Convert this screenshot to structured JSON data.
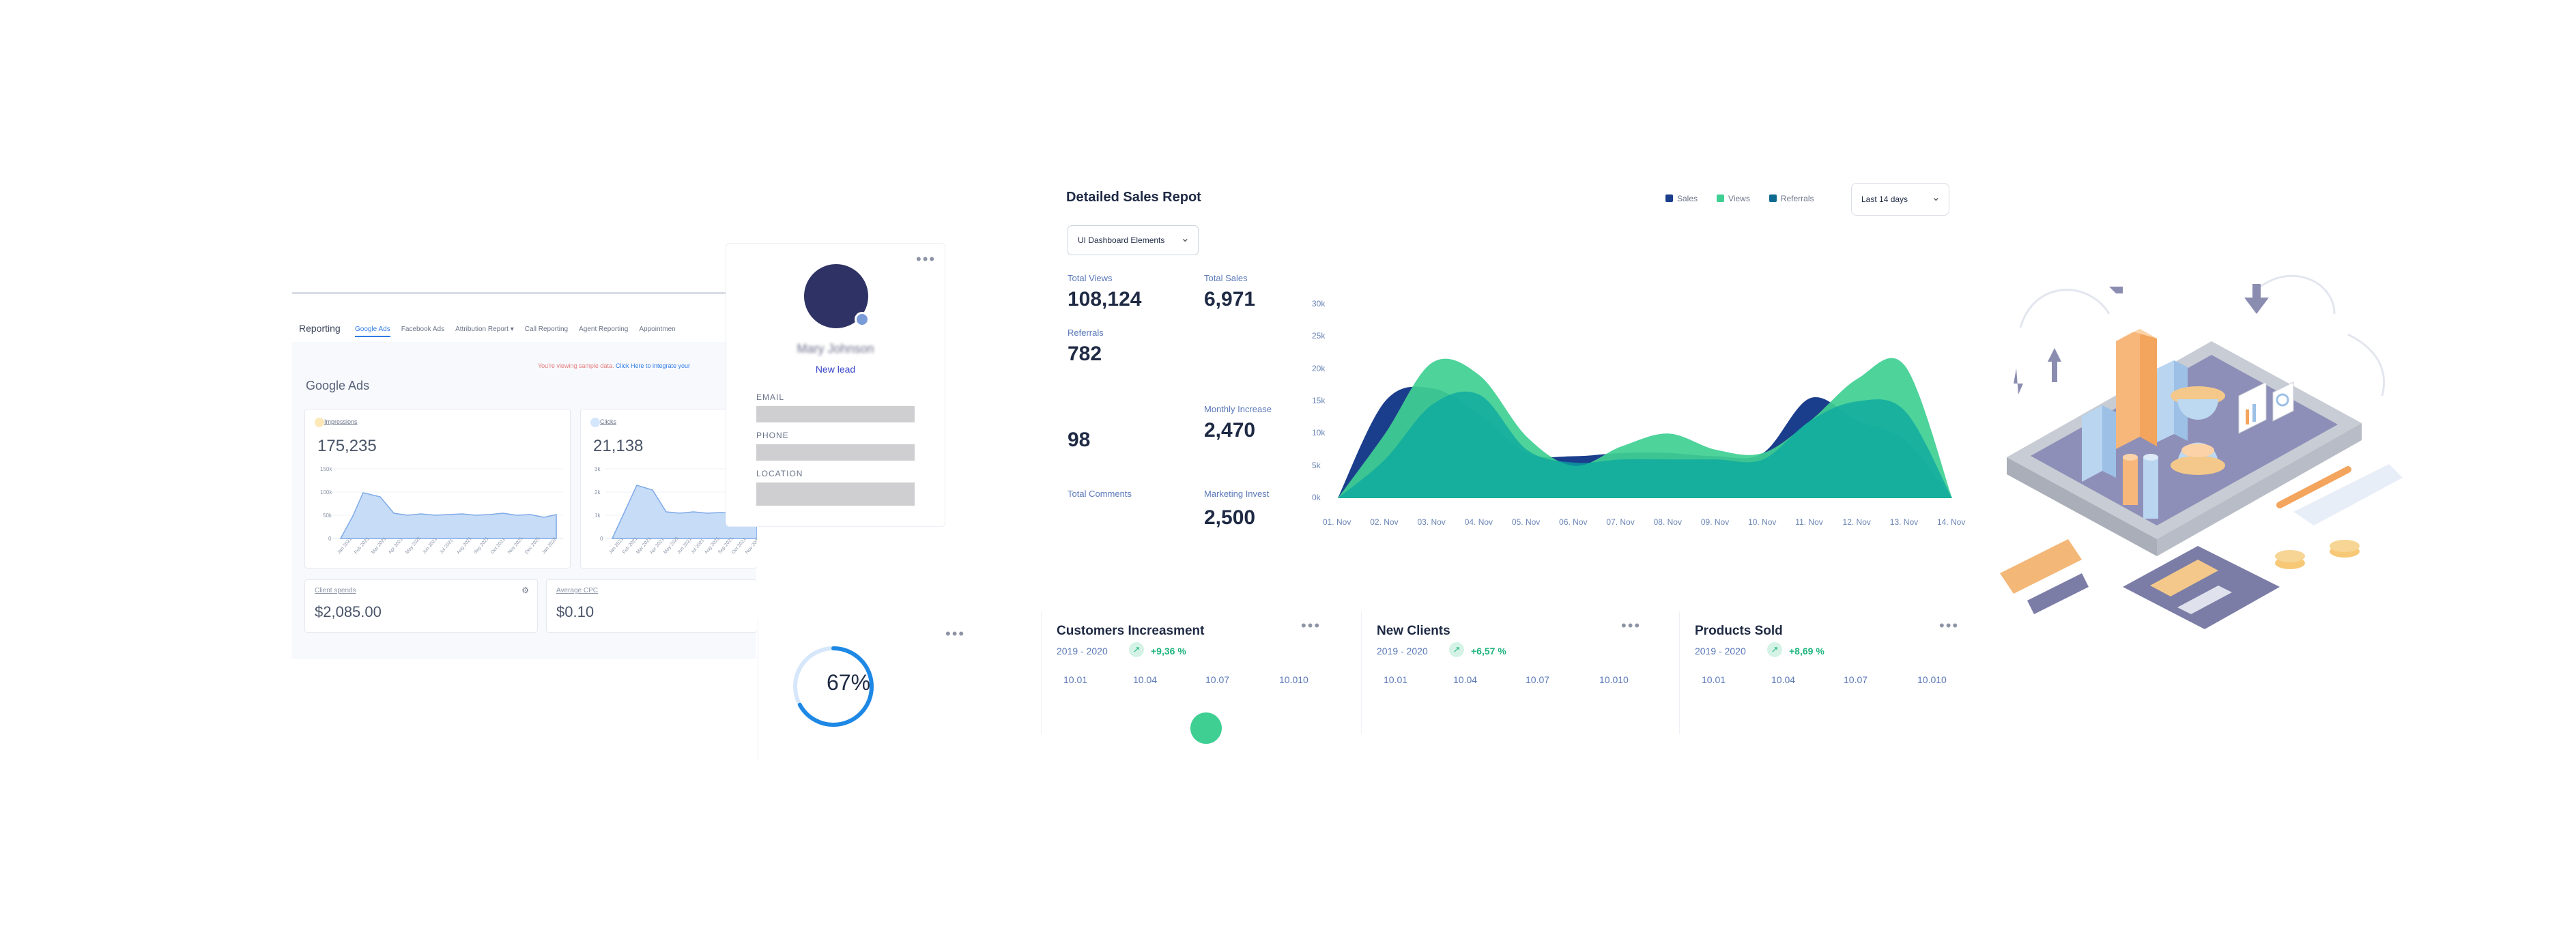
{
  "colors": {
    "sales": "#1b3e8c",
    "views": "#3fcf93",
    "referrals": "#0e6a8f",
    "teal_overlap": "#0aa7a0",
    "accent_blue": "#2f7be5",
    "progress": "#1e88e5"
  },
  "reporting": {
    "title": "Reporting",
    "tabs": [
      "Google Ads",
      "Facebook Ads",
      "Attribution Report ▾",
      "Call Reporting",
      "Agent Reporting",
      "Appointmen"
    ],
    "notice": "You're viewing sample data.",
    "notice_link": "Click Here to integrate your",
    "section": "Google Ads",
    "impressions": {
      "label": "Impressions",
      "value": "175,235",
      "yticks": [
        "150k",
        "100k",
        "50k",
        "0"
      ],
      "icon": "eye-icon"
    },
    "clicks": {
      "label": "Clicks",
      "value": "21,138",
      "yticks": [
        "3k",
        "2k",
        "1k",
        "0"
      ],
      "icon": "cursor-icon"
    },
    "client_spends": {
      "label": "Client spends",
      "value": "$2,085.00",
      "icon": "gear-icon"
    },
    "average_cpc": {
      "label": "Average CPC",
      "value": "$0.10"
    },
    "xdates": [
      "Jan 2021",
      "Feb 2021",
      "Mar 2021",
      "Apr 2021",
      "May 2021",
      "Jun 2021",
      "Jul 2021",
      "Aug 2021",
      "Sep 2021",
      "Oct 2021",
      "Nov 2021",
      "Dec 2021",
      "Jan 2022"
    ]
  },
  "lead": {
    "name": "Mary Johnson",
    "status": "New lead",
    "fields": [
      "EMAIL",
      "PHONE",
      "LOCATION"
    ],
    "menu_icon": "more-dots-icon"
  },
  "sales": {
    "title": "Detailed Sales Repot",
    "legend": [
      {
        "name": "Sales",
        "color": "#1b3e8c"
      },
      {
        "name": "Views",
        "color": "#3fcf93"
      },
      {
        "name": "Referrals",
        "color": "#0e6a8f"
      }
    ],
    "range": "Last 14 days",
    "filter": "UI Dashboard Elements",
    "stats": {
      "total_views": {
        "label": "Total Views",
        "value": "108,124"
      },
      "total_sales": {
        "label": "Total Sales",
        "value": "6,971"
      },
      "referrals": {
        "label": "Referrals",
        "value": "782"
      },
      "monthly_increase": {
        "label": "Monthly Increase",
        "value": "2,470"
      },
      "comments_value": "98",
      "total_comments": {
        "label": "Total Comments"
      },
      "marketing_invest": {
        "label": "Marketing Invest",
        "value": "2,500"
      }
    }
  },
  "chart_data": {
    "type": "area",
    "categories": [
      "01. Nov",
      "02. Nov",
      "03. Nov",
      "04. Nov",
      "05. Nov",
      "06. Nov",
      "07. Nov",
      "08. Nov",
      "09. Nov",
      "10. Nov",
      "11. Nov",
      "12. Nov",
      "13. Nov",
      "14. Nov"
    ],
    "y_ticks": [
      "0k",
      "5k",
      "10k",
      "15k",
      "20k",
      "25k",
      "30k"
    ],
    "ylim": [
      0,
      30000
    ],
    "legend": "top-right",
    "series": [
      {
        "name": "Sales",
        "values": [
          0,
          15000,
          17000,
          13000,
          7000,
          6500,
          7000,
          7000,
          6500,
          7000,
          15500,
          12000,
          9000,
          0
        ]
      },
      {
        "name": "Views",
        "values": [
          0,
          10000,
          21000,
          19000,
          9500,
          5000,
          8000,
          10000,
          7500,
          7000,
          12000,
          18500,
          20500,
          0
        ]
      },
      {
        "name": "Referrals",
        "values": [
          0,
          6000,
          14500,
          16000,
          7500,
          5500,
          6000,
          6000,
          6000,
          6000,
          12000,
          15000,
          13500,
          0
        ]
      }
    ]
  },
  "progress": {
    "value": "67%",
    "fraction": 0.67
  },
  "kpis": [
    {
      "title": "Customers Increasment",
      "period": "2019 - 2020",
      "change": "+9,36 %",
      "ticks": [
        "10.01",
        "10.04",
        "10.07",
        "10.010"
      ]
    },
    {
      "title": "New Clients",
      "period": "2019 - 2020",
      "change": "+6,57 %",
      "ticks": [
        "10.01",
        "10.04",
        "10.07",
        "10.010"
      ]
    },
    {
      "title": "Products Sold",
      "period": "2019 - 2020",
      "change": "+8,69 %",
      "ticks": [
        "10.01",
        "10.04",
        "10.07",
        "10.010"
      ]
    }
  ],
  "illustration": {
    "name": "isometric-finance-illustration"
  }
}
